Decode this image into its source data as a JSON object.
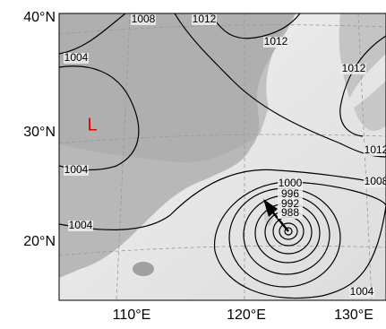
{
  "map": {
    "lat_labels": [
      "40°N",
      "30°N",
      "20°N"
    ],
    "lon_labels": [
      "110°E",
      "120°E",
      "130°E"
    ],
    "low_marker": "L",
    "isobar_labels": [
      "1008",
      "1012",
      "1012",
      "1004",
      "1012",
      "1004",
      "1012",
      "1008",
      "1004",
      "1000",
      "996",
      "992",
      "988",
      "1004"
    ]
  }
}
